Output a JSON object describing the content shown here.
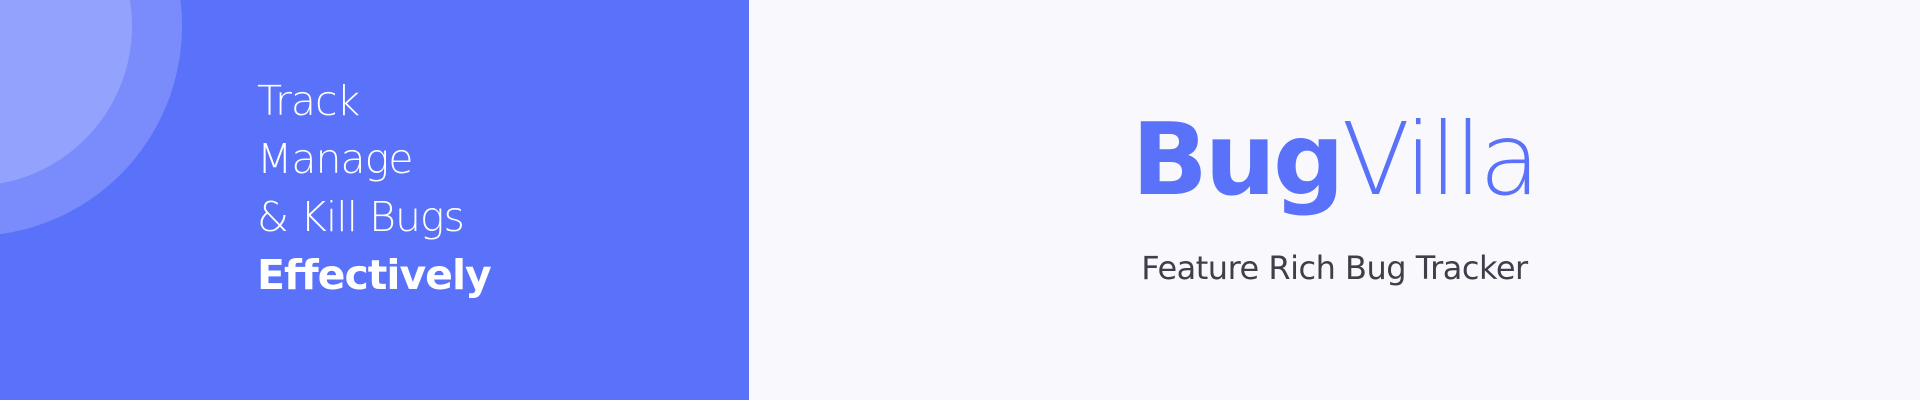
{
  "tagline": {
    "line1": "Track",
    "line2": "Manage",
    "line3": "& Kill Bugs",
    "line4": "Effectively"
  },
  "brand": {
    "part1": "Bug",
    "part2": "Villa",
    "subtitle": "Feature Rich Bug Tracker"
  },
  "colors": {
    "accent": "#5a72f9",
    "background": "#f9f9fd",
    "subtitle_text": "#3f3f4a",
    "circle_outer": "#7a8cfb",
    "circle_inner": "#93a2fc"
  }
}
